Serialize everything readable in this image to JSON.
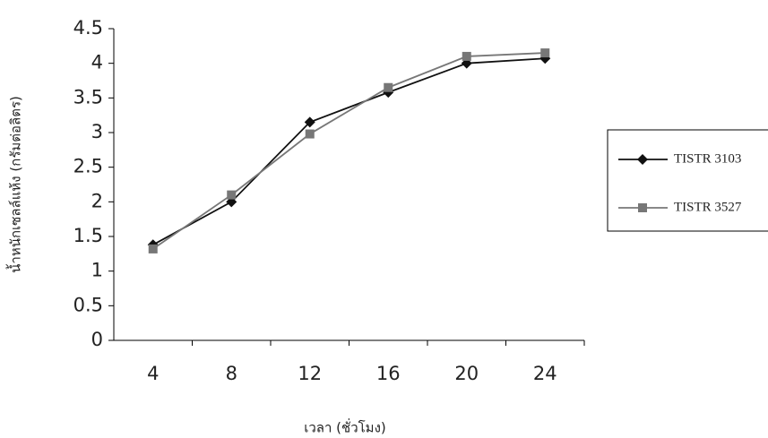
{
  "chart_data": {
    "type": "line",
    "x_label": "เวลา (ชั่วโมง)",
    "y_label": "น้ำหนักเซลล์แห้ง (กรัมต่อลิตร)",
    "categories": [
      "4",
      "8",
      "12",
      "16",
      "20",
      "24"
    ],
    "series": [
      {
        "name": "TISTR 3103",
        "color": "#111111",
        "marker": "diamond",
        "values": [
          1.38,
          2.0,
          3.15,
          3.58,
          4.0,
          4.07
        ]
      },
      {
        "name": "TISTR 3527",
        "color": "#777777",
        "marker": "square",
        "values": [
          1.32,
          2.1,
          2.98,
          3.65,
          4.1,
          4.15
        ]
      }
    ],
    "ylim": [
      0,
      4.5
    ],
    "yticks": [
      0,
      0.5,
      1,
      1.5,
      2,
      2.5,
      3,
      3.5,
      4,
      4.5
    ]
  }
}
